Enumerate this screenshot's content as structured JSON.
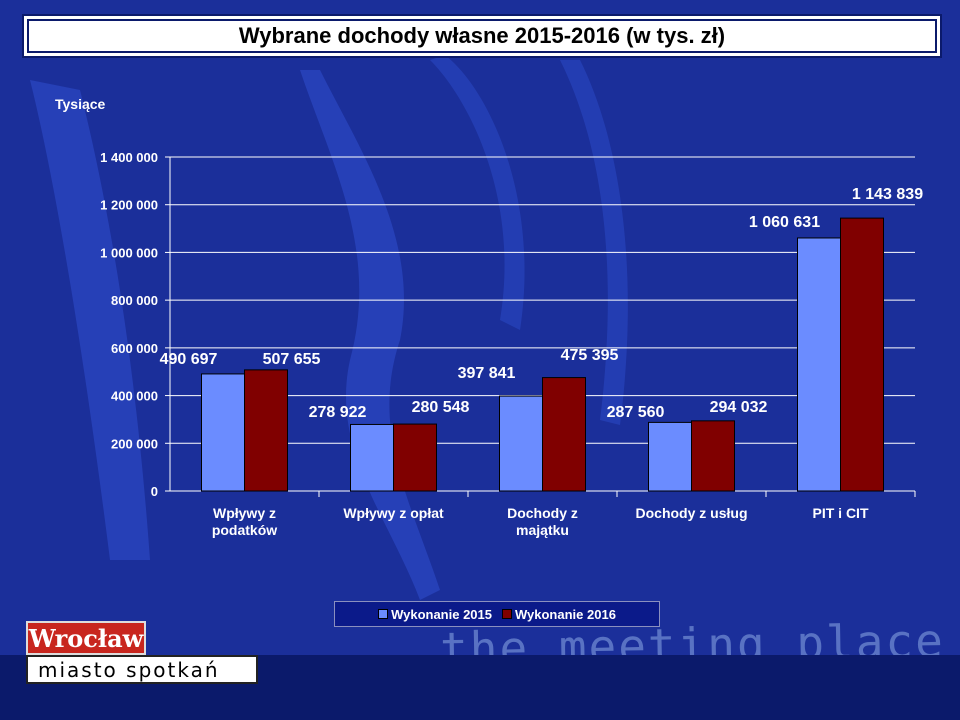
{
  "title": "Wybrane dochody własne 2015-2016 (w tys. zł)",
  "logo": {
    "top": "Wrocław",
    "bottom": "miasto spotkań"
  },
  "slogan": "the meeting place",
  "chart_data": {
    "type": "bar",
    "ylabel": "Tysiące",
    "ylim": [
      0,
      1400000
    ],
    "yticks": [
      0,
      200000,
      400000,
      600000,
      800000,
      1000000,
      1200000,
      1400000
    ],
    "ytick_labels": [
      "0",
      "200 000",
      "400 000",
      "600 000",
      "800 000",
      "1 000 000",
      "1 200 000",
      "1 400 000"
    ],
    "grid": true,
    "legend_position": "bottom",
    "categories": [
      "Wpływy z podatków",
      "Wpływy z opłat",
      "Dochody z majątku",
      "Dochody z usług",
      "PIT i CIT"
    ],
    "category_lines": [
      [
        "Wpływy z",
        "podatków"
      ],
      [
        "Wpływy z opłat"
      ],
      [
        "Dochody z",
        "majątku"
      ],
      [
        "Dochody z usług"
      ],
      [
        "PIT i CIT"
      ]
    ],
    "series": [
      {
        "name": "Wykonanie 2015",
        "color": "#6b8cff",
        "values": [
          490697,
          278922,
          397841,
          287560,
          1060631
        ],
        "labels": [
          "490 697",
          "278 922",
          "397 841",
          "287 560",
          "1 060 631"
        ]
      },
      {
        "name": "Wykonanie 2016",
        "color": "#800000",
        "values": [
          507655,
          280548,
          475395,
          294032,
          1143839
        ],
        "labels": [
          "507 655",
          "280 548",
          "475 395",
          "294 032",
          "1 143 839"
        ]
      }
    ]
  }
}
